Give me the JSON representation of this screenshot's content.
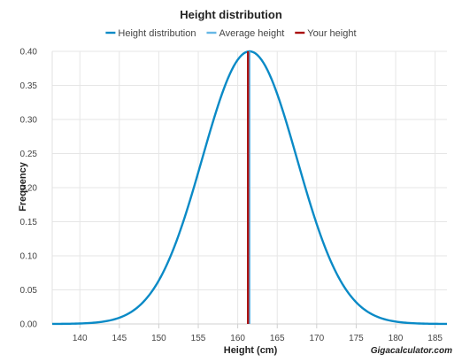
{
  "chart_data": {
    "type": "line",
    "title": "Height distribution",
    "xlabel": "Height (cm)",
    "ylabel": "Frequency",
    "xlim": [
      136.5,
      186.5
    ],
    "ylim": [
      0,
      0.4
    ],
    "x_ticks": [
      140,
      145,
      150,
      155,
      160,
      165,
      170,
      175,
      180,
      185
    ],
    "y_ticks": [
      "0.00",
      "0.05",
      "0.10",
      "0.15",
      "0.20",
      "0.25",
      "0.30",
      "0.35",
      "0.40"
    ],
    "grid": true,
    "legend_position": "top",
    "distribution": {
      "mean": 161.5,
      "std_dev": 6.0,
      "peak": 0.4
    },
    "series": [
      {
        "name": "Height distribution",
        "color": "#0a8ac6",
        "kind": "curve",
        "x": [
          136.5,
          140,
          143,
          146,
          149,
          152,
          155,
          157,
          159,
          161.5,
          164,
          166,
          168,
          171,
          174,
          177,
          180,
          183,
          186.5
        ],
        "y": [
          0.0,
          0.001,
          0.003,
          0.014,
          0.045,
          0.115,
          0.222,
          0.302,
          0.366,
          0.4,
          0.366,
          0.302,
          0.222,
          0.115,
          0.045,
          0.014,
          0.003,
          0.001,
          0.0
        ]
      },
      {
        "name": "Average height",
        "color": "#66b8e6",
        "kind": "vline",
        "x": 161.5
      },
      {
        "name": "Your height",
        "color": "#aa1111",
        "kind": "vline",
        "x": 161.3
      }
    ]
  },
  "watermark": "Gigacalculator.com"
}
